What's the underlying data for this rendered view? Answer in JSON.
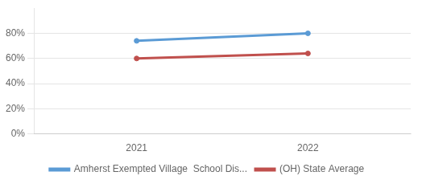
{
  "chart_data": {
    "type": "line",
    "x": [
      2021,
      2022
    ],
    "series": [
      {
        "name": "Amherst Exempted Village  School Dis...",
        "color": "#5b9bd5",
        "values": [
          74,
          80
        ]
      },
      {
        "name": "(OH) State Average",
        "color": "#c0504d",
        "values": [
          60,
          64
        ]
      }
    ],
    "xlim": [
      2020.4,
      2022.6
    ],
    "xticks": [
      2021,
      2022
    ],
    "ylim": [
      0,
      100
    ],
    "yticks": [
      {
        "value": 0,
        "label": "0%"
      },
      {
        "value": 20,
        "label": "20%"
      },
      {
        "value": 40,
        "label": "40%"
      },
      {
        "value": 60,
        "label": "60%"
      },
      {
        "value": 80,
        "label": "80%"
      }
    ],
    "grid": "y",
    "legend": "bottom"
  }
}
